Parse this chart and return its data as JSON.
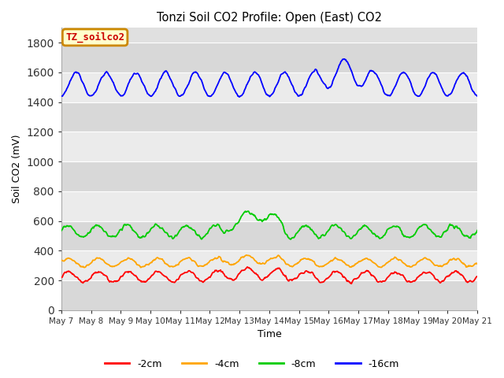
{
  "title": "Tonzi Soil CO2 Profile: Open (East) CO2",
  "ylabel": "Soil CO2 (mV)",
  "xlabel": "Time",
  "annotation": "TZ_soilco2",
  "ylim": [
    0,
    1900
  ],
  "yticks": [
    0,
    200,
    400,
    600,
    800,
    1000,
    1200,
    1400,
    1600,
    1800
  ],
  "x_labels": [
    "May 7",
    "May 8",
    "May 9",
    "May 10",
    "May 11",
    "May 12",
    "May 13",
    "May 14",
    "May 15",
    "May 16",
    "May 17",
    "May 18",
    "May 19",
    "May 20",
    "May 21"
  ],
  "colors": {
    "2cm": "#ff0000",
    "4cm": "#ffa500",
    "8cm": "#00cc00",
    "16cm": "#0000ff"
  },
  "legend_labels": [
    "-2cm",
    "-4cm",
    "-8cm",
    "-16cm"
  ],
  "background_color": "#ffffff",
  "plot_bg_color": "#e0e0e0",
  "band_light": "#ebebeb",
  "band_dark": "#d8d8d8",
  "annotation_bg": "#ffffcc",
  "annotation_border": "#cc8800"
}
